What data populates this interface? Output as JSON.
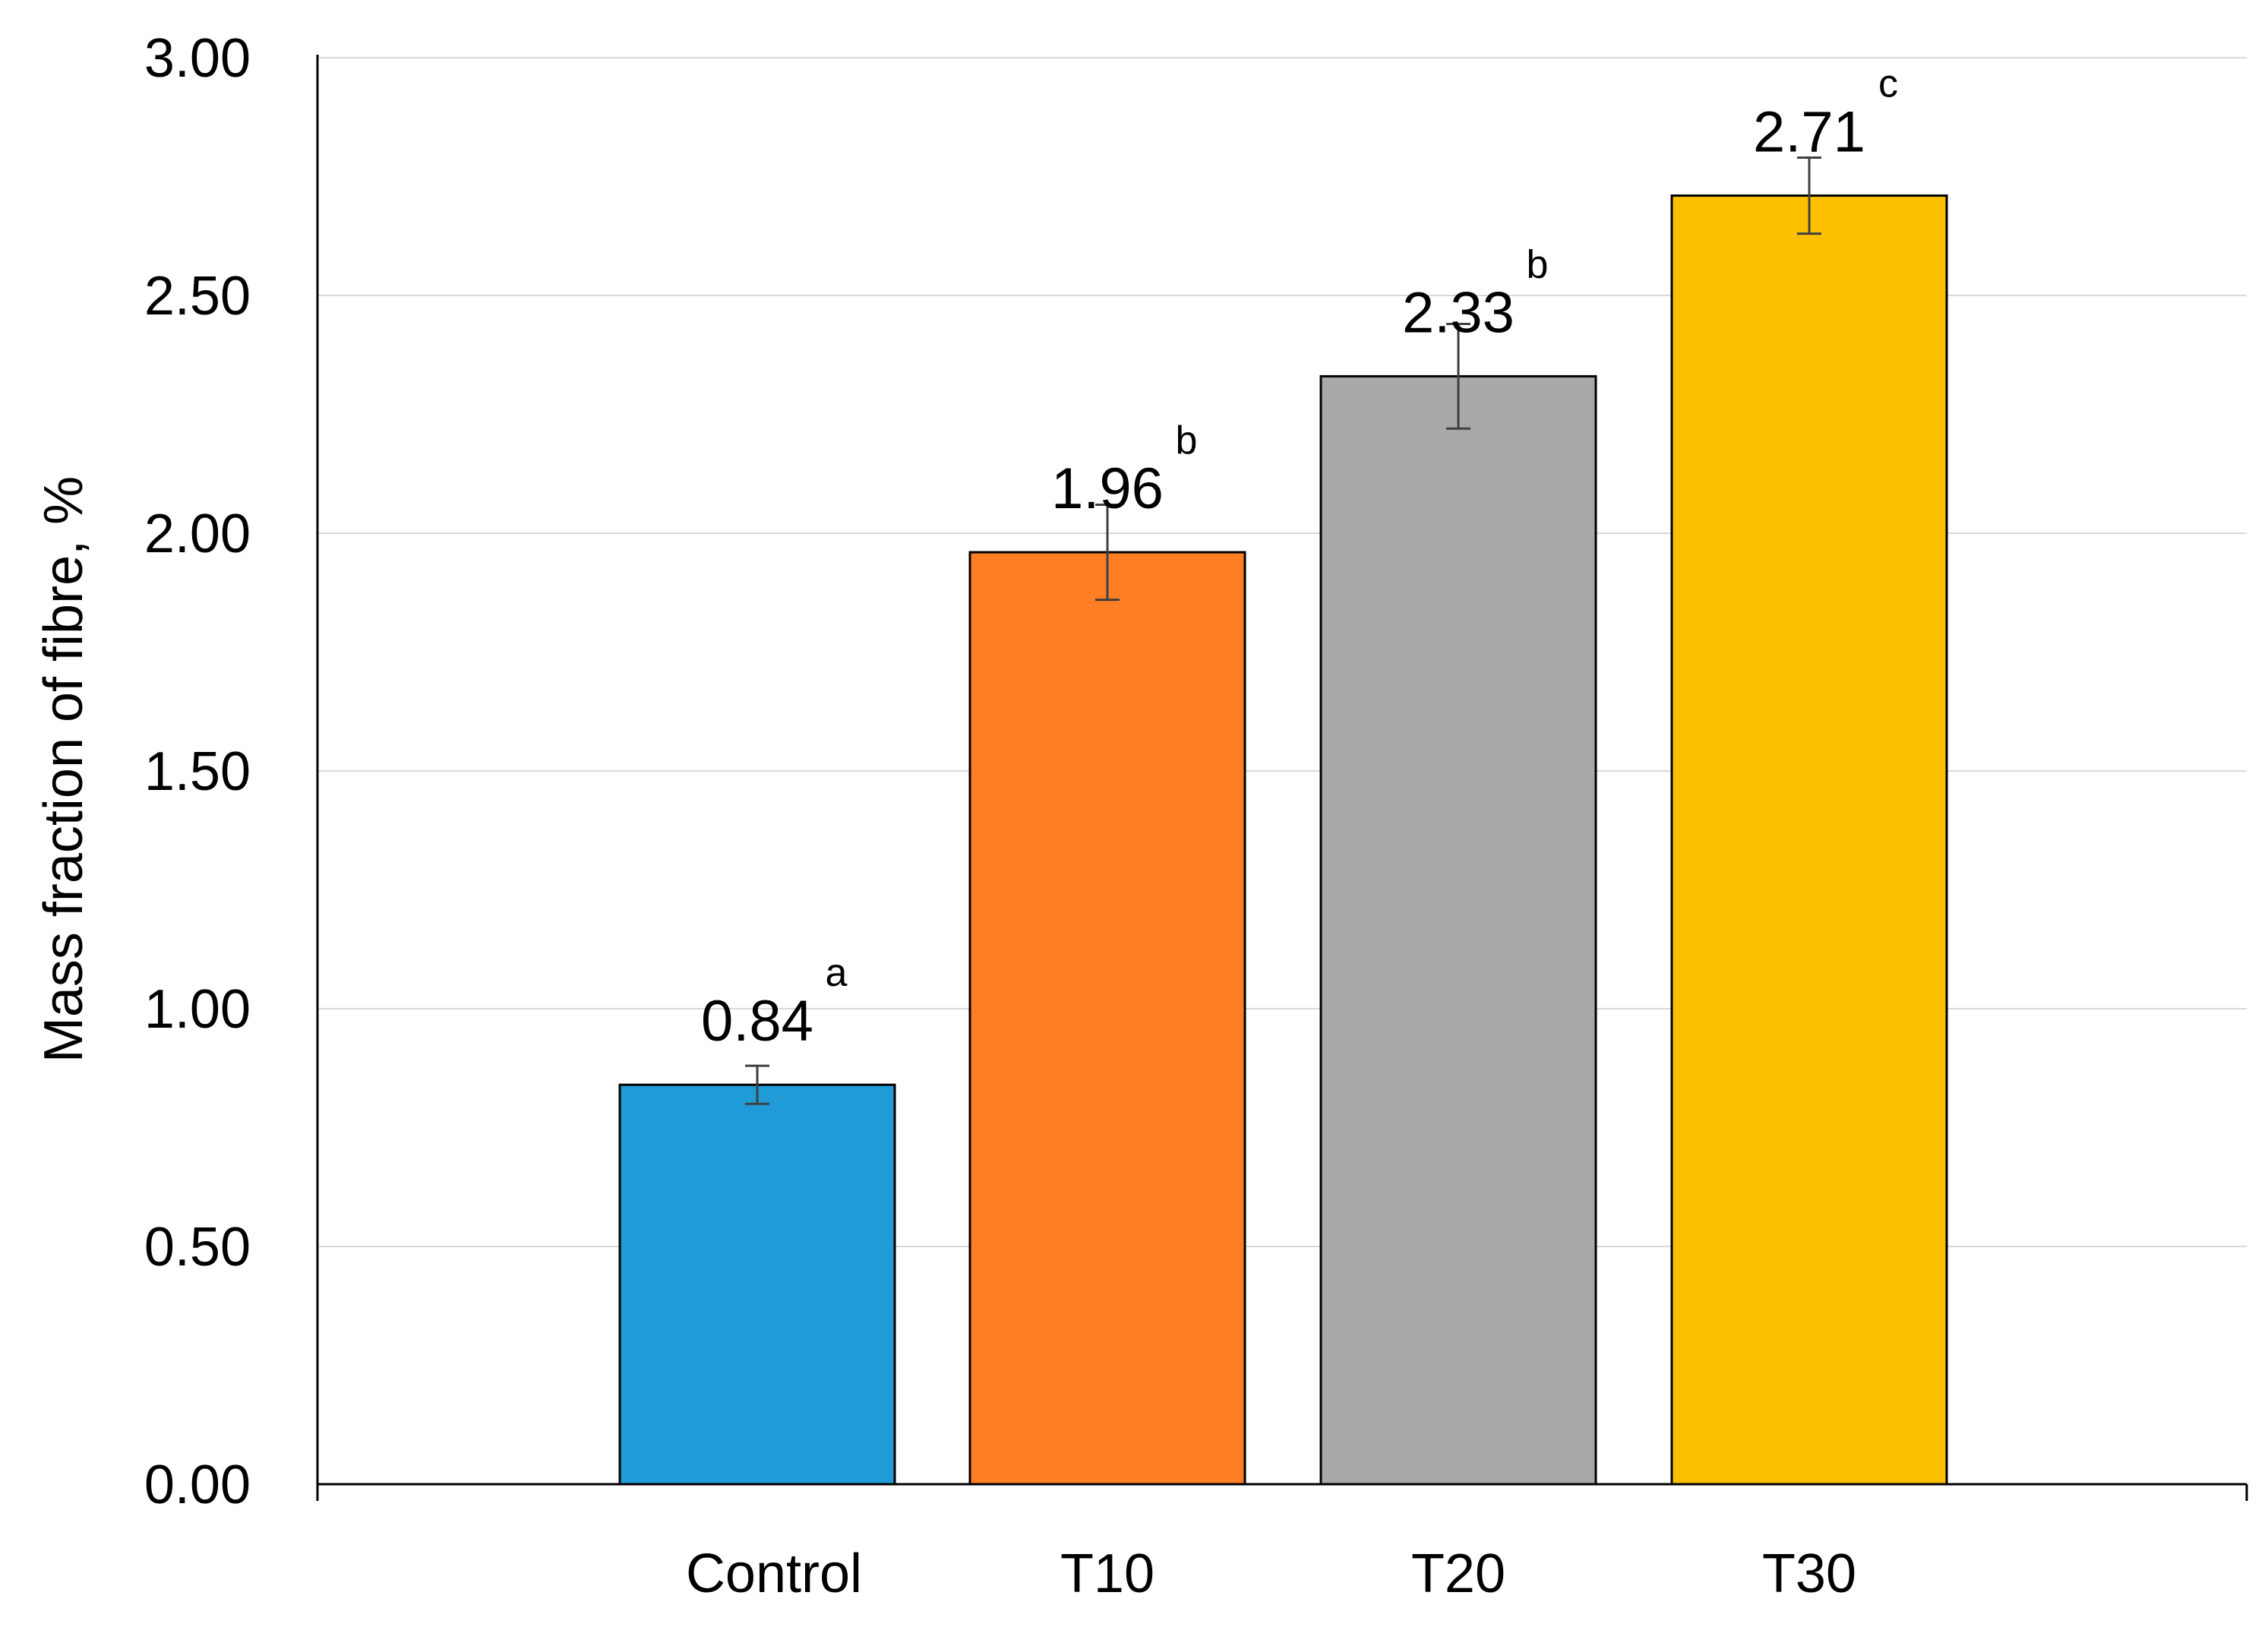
{
  "chart_data": {
    "type": "bar",
    "title": "",
    "xlabel": "",
    "ylabel": "Mass fraction of fibre, %",
    "ylim": [
      0,
      3
    ],
    "yticks": [
      0,
      0.5,
      1.0,
      1.5,
      2.0,
      2.5,
      3.0
    ],
    "ytick_labels": [
      "0.00",
      "0.50",
      "1.00",
      "1.50",
      "2.00",
      "2.50",
      "3.00"
    ],
    "grid": true,
    "categories": [
      "Control",
      "T10",
      "T20",
      "T30"
    ],
    "values": [
      0.84,
      1.96,
      2.33,
      2.71
    ],
    "value_labels": [
      "0.84",
      "1.96",
      "2.33",
      "2.71"
    ],
    "error_bars": [
      0.04,
      0.1,
      0.11,
      0.08
    ],
    "significance_letters": [
      "a",
      "b",
      "b",
      "c"
    ],
    "colors": [
      "#1f9bd7",
      "#fd7e23",
      "#a8a8a8",
      "#fdc000"
    ],
    "grid_color": "#d9d9d9",
    "axis_color": "#000000"
  }
}
